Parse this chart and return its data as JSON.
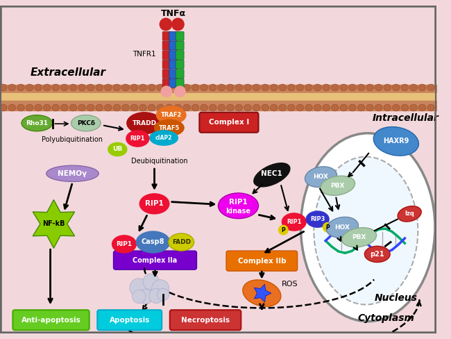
{
  "bg_color": "#f2d8dc",
  "extracellular_label": "Extracellular",
  "intracellular_label": "Intracellular",
  "cytoplasm_label": "Cytoplasm",
  "nucleus_label": "Nucleus"
}
